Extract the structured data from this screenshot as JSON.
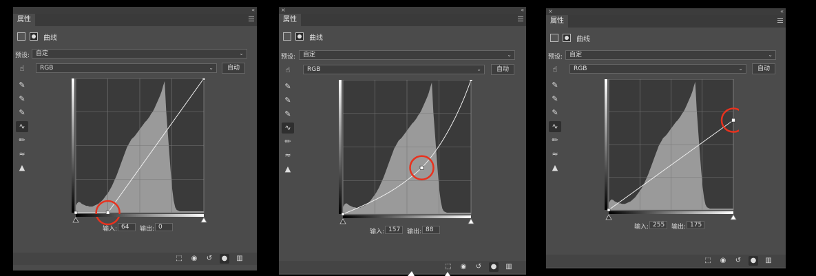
{
  "panels": [
    {
      "tab": "属性",
      "type_name": "曲线",
      "preset_label": "预设:",
      "preset_value": "自定",
      "channel_value": "RGB",
      "auto_label": "自动",
      "input_label": "输入:",
      "input_value": "64",
      "output_label": "输出:",
      "output_value": "0",
      "curve_kind": "bend-low",
      "point": [
        64,
        0
      ]
    },
    {
      "tab": "属性",
      "type_name": "曲线",
      "preset_label": "预设:",
      "preset_value": "自定",
      "channel_value": "RGB",
      "auto_label": "自动",
      "input_label": "输入:",
      "input_value": "157",
      "output_label": "输出:",
      "output_value": "88",
      "curve_kind": "smooth",
      "point": [
        157,
        88
      ]
    },
    {
      "tab": "属性",
      "type_name": "曲线",
      "preset_label": "预设:",
      "preset_value": "自定",
      "channel_value": "RGB",
      "auto_label": "自动",
      "input_label": "输入:",
      "input_value": "255",
      "output_label": "输出:",
      "output_value": "175",
      "curve_kind": "line-end",
      "point": [
        255,
        175
      ]
    }
  ],
  "tool_icons": [
    "eyedropper-black-icon",
    "eyedropper-gray-icon",
    "eyedropper-white-icon",
    "curve-edit-icon",
    "pencil-icon",
    "smooth-icon",
    "clipping-warning-icon"
  ],
  "bottom_icons": [
    "clip-to-layer-icon",
    "view-previous-icon",
    "reset-icon",
    "visibility-eye-icon",
    "delete-trash-icon"
  ],
  "histogram": [
    10,
    14,
    16,
    15,
    13,
    12,
    11,
    10,
    10,
    9,
    9,
    9,
    10,
    11,
    12,
    13,
    15,
    17,
    19,
    22,
    25,
    28,
    31,
    35,
    39,
    44,
    49,
    54,
    60,
    66,
    72,
    78,
    84,
    90,
    96,
    100,
    104,
    108,
    110,
    112,
    115,
    118,
    121,
    124,
    127,
    130,
    133,
    135,
    138,
    141,
    145,
    148,
    152,
    157,
    162,
    167,
    172,
    178,
    186,
    193,
    150,
    120,
    90,
    60,
    35,
    18,
    8,
    4,
    3,
    2,
    2,
    2,
    2,
    2,
    2,
    2,
    2,
    2,
    2,
    2,
    2,
    2,
    2,
    2,
    2,
    2
  ],
  "colors": {
    "panel": "#4b4b4b",
    "graph_bg": "#3a3a3a",
    "histogram": "#9a9a9a",
    "curve": "#eeeeee",
    "highlight": "#e8321e"
  }
}
